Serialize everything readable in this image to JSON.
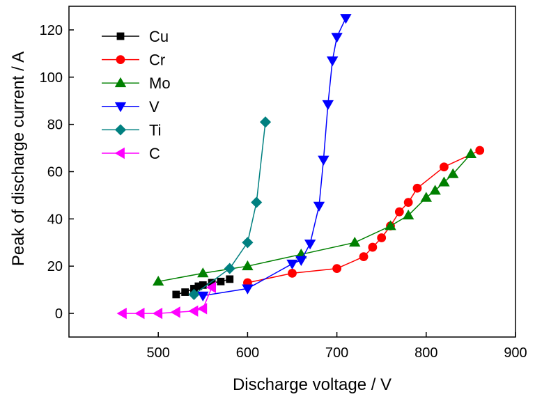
{
  "chart_data": {
    "type": "line",
    "title": "",
    "xlabel": "Discharge voltage / V",
    "ylabel": "Peak of discharge current / A",
    "xlim": [
      400,
      900
    ],
    "ylim": [
      -10,
      130
    ],
    "xticks": [
      500,
      600,
      700,
      800,
      900
    ],
    "yticks": [
      0,
      20,
      40,
      60,
      80,
      100,
      120
    ],
    "x_tick_labels": [
      "500",
      "600",
      "700",
      "800",
      "900"
    ],
    "y_tick_labels": [
      "0",
      "20",
      "40",
      "60",
      "80",
      "100",
      "120"
    ],
    "grid": false,
    "legend_position": "top-left",
    "series": [
      {
        "name": "Cu",
        "color": "#000000",
        "marker": "square",
        "x": [
          520,
          530,
          540,
          545,
          550,
          560,
          570,
          580
        ],
        "y": [
          8,
          9,
          10.5,
          11.5,
          12,
          13,
          13.5,
          14.5
        ]
      },
      {
        "name": "Cr",
        "color": "#ff0000",
        "marker": "circle",
        "x": [
          600,
          650,
          700,
          730,
          740,
          750,
          760,
          770,
          780,
          790,
          820,
          860
        ],
        "y": [
          13,
          17,
          19,
          24,
          28,
          32,
          37,
          43,
          47,
          53,
          62,
          69
        ]
      },
      {
        "name": "Mo",
        "color": "#008000",
        "marker": "triangle-up",
        "x": [
          500,
          550,
          600,
          660,
          720,
          760,
          780,
          800,
          810,
          820,
          830,
          850
        ],
        "y": [
          13.5,
          17,
          20,
          25,
          30,
          37,
          41.5,
          49,
          52,
          55.5,
          59,
          67.5
        ]
      },
      {
        "name": "V",
        "color": "#0000ff",
        "marker": "triangle-down",
        "x": [
          550,
          600,
          650,
          660,
          670,
          680,
          685,
          690,
          695,
          700,
          710
        ],
        "y": [
          7.5,
          10.5,
          21,
          22.5,
          29.5,
          45.5,
          65,
          88.5,
          107,
          117,
          125
        ]
      },
      {
        "name": "Ti",
        "color": "#008080",
        "marker": "diamond",
        "x": [
          540,
          580,
          600,
          610,
          620
        ],
        "y": [
          8,
          19,
          30,
          47,
          81
        ]
      },
      {
        "name": "C",
        "color": "#ff00ff",
        "marker": "triangle-left",
        "x": [
          460,
          480,
          500,
          520,
          540,
          550,
          560
        ],
        "y": [
          0,
          0,
          0,
          0.5,
          1,
          2,
          11
        ]
      }
    ]
  }
}
